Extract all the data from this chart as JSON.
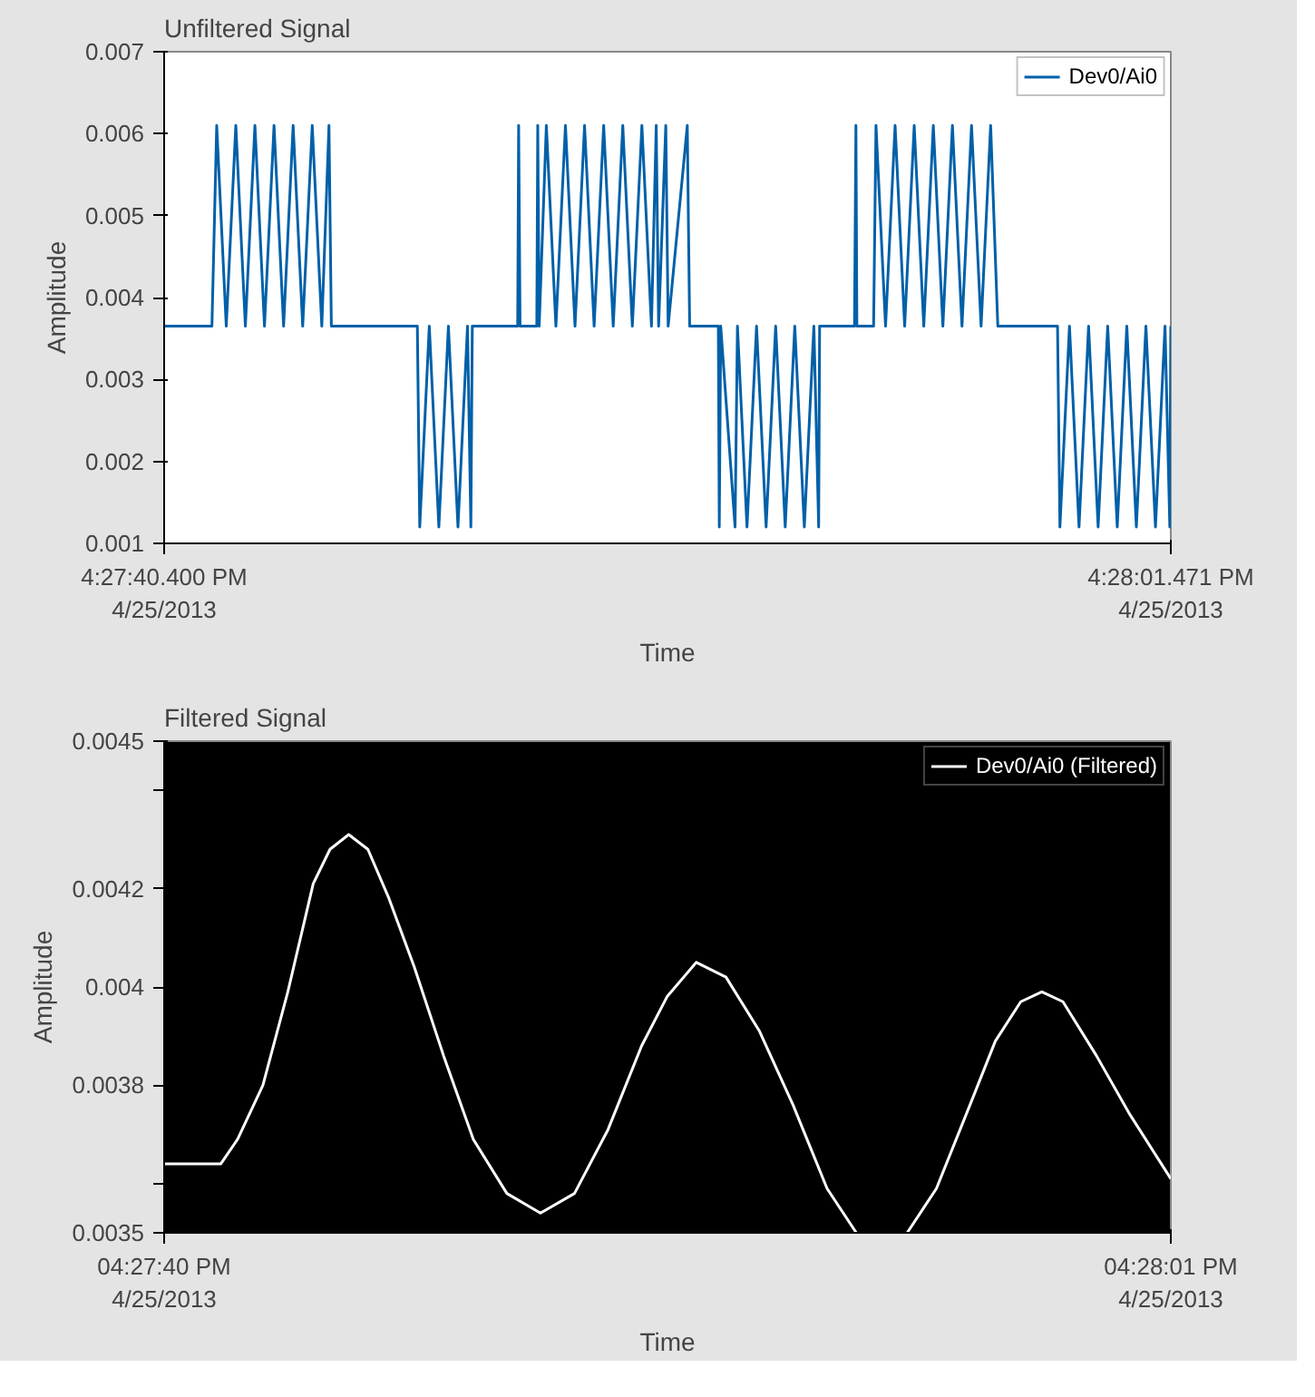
{
  "chart_data": [
    {
      "type": "line",
      "title": "Unfiltered Signal",
      "xlabel": "Time",
      "ylabel": "Amplitude",
      "legend": "top right",
      "grid": false,
      "xlim": [
        "2013-04-25T16:27:40.400",
        "2013-04-25T16:28:01.471"
      ],
      "xticks": [
        {
          "value": "2013-04-25T16:27:40.400",
          "label": "4:27:40.400 PM\n4/25/2013"
        },
        {
          "value": "2013-04-25T16:28:01.471",
          "label": "4:28:01.471 PM\n4/25/2013"
        }
      ],
      "ylim": [
        0.001,
        0.007
      ],
      "yticks": [
        0.001,
        0.002,
        0.003,
        0.004,
        0.005,
        0.006,
        0.007
      ],
      "series": [
        {
          "name": "Dev0/Ai0",
          "color": "#0060a8",
          "x": [
            "2013-04-25T16:27:40.400",
            "2013-04-25T16:27:41.400",
            "2013-04-25T16:27:41.500",
            "2013-04-25T16:27:41.700",
            "2013-04-25T16:27:41.900",
            "2013-04-25T16:27:42.100",
            "2013-04-25T16:27:42.300",
            "2013-04-25T16:27:42.500",
            "2013-04-25T16:27:42.700",
            "2013-04-25T16:27:42.900",
            "2013-04-25T16:27:43.100",
            "2013-04-25T16:27:43.300",
            "2013-04-25T16:27:43.500",
            "2013-04-25T16:27:43.700",
            "2013-04-25T16:27:43.850",
            "2013-04-25T16:27:43.900",
            "2013-04-25T16:27:45.700",
            "2013-04-25T16:27:45.750",
            "2013-04-25T16:27:45.950",
            "2013-04-25T16:27:46.150",
            "2013-04-25T16:27:46.350",
            "2013-04-25T16:27:46.550",
            "2013-04-25T16:27:46.750",
            "2013-04-25T16:27:46.820",
            "2013-04-25T16:27:46.850",
            "2013-04-25T16:27:47.800",
            "2013-04-25T16:27:47.820",
            "2013-04-25T16:27:47.850",
            "2013-04-25T16:27:48.200",
            "2013-04-25T16:27:48.220",
            "2013-04-25T16:27:48.250",
            "2013-04-25T16:27:48.400",
            "2013-04-25T16:27:48.600",
            "2013-04-25T16:27:48.800",
            "2013-04-25T16:27:49.000",
            "2013-04-25T16:27:49.200",
            "2013-04-25T16:27:49.400",
            "2013-04-25T16:27:49.600",
            "2013-04-25T16:27:49.800",
            "2013-04-25T16:27:50.000",
            "2013-04-25T16:27:50.200",
            "2013-04-25T16:27:50.400",
            "2013-04-25T16:27:50.600",
            "2013-04-25T16:27:50.700",
            "2013-04-25T16:27:50.750",
            "2013-04-25T16:27:50.900",
            "2013-04-25T16:27:50.950",
            "2013-04-25T16:27:51.350",
            "2013-04-25T16:27:51.400",
            "2013-04-25T16:27:52.000",
            "2013-04-25T16:27:52.020",
            "2013-04-25T16:27:52.050",
            "2013-04-25T16:27:52.350",
            "2013-04-25T16:27:52.400",
            "2013-04-25T16:27:52.600",
            "2013-04-25T16:27:52.800",
            "2013-04-25T16:27:53.000",
            "2013-04-25T16:27:53.200",
            "2013-04-25T16:27:53.400",
            "2013-04-25T16:27:53.600",
            "2013-04-25T16:27:53.800",
            "2013-04-25T16:27:54.000",
            "2013-04-25T16:27:54.100",
            "2013-04-25T16:27:54.120",
            "2013-04-25T16:27:54.850",
            "2013-04-25T16:27:54.880",
            "2013-04-25T16:27:54.900",
            "2013-04-25T16:27:55.250",
            "2013-04-25T16:27:55.300",
            "2013-04-25T16:27:55.500",
            "2013-04-25T16:27:55.700",
            "2013-04-25T16:27:55.900",
            "2013-04-25T16:27:56.100",
            "2013-04-25T16:27:56.300",
            "2013-04-25T16:27:56.500",
            "2013-04-25T16:27:56.700",
            "2013-04-25T16:27:56.900",
            "2013-04-25T16:27:57.100",
            "2013-04-25T16:27:57.300",
            "2013-04-25T16:27:57.500",
            "2013-04-25T16:27:57.700",
            "2013-04-25T16:27:57.850",
            "2013-04-25T16:27:59.100",
            "2013-04-25T16:27:59.150",
            "2013-04-25T16:27:59.350",
            "2013-04-25T16:27:59.550",
            "2013-04-25T16:27:59.750",
            "2013-04-25T16:27:59.950",
            "2013-04-25T16:28:00.150",
            "2013-04-25T16:28:00.350",
            "2013-04-25T16:28:00.550",
            "2013-04-25T16:28:00.750",
            "2013-04-25T16:28:00.950",
            "2013-04-25T16:28:01.150",
            "2013-04-25T16:28:01.350",
            "2013-04-25T16:28:01.450",
            "2013-04-25T16:28:01.471"
          ],
          "values": [
            0.00365,
            0.00365,
            0.0061,
            0.00365,
            0.0061,
            0.00365,
            0.0061,
            0.00365,
            0.0061,
            0.00365,
            0.0061,
            0.00365,
            0.0061,
            0.00365,
            0.0061,
            0.00365,
            0.00365,
            0.0012,
            0.00365,
            0.0012,
            0.00365,
            0.0012,
            0.00365,
            0.0012,
            0.00365,
            0.00365,
            0.0061,
            0.00365,
            0.00365,
            0.0061,
            0.00365,
            0.0061,
            0.00365,
            0.0061,
            0.00365,
            0.0061,
            0.00365,
            0.0061,
            0.00365,
            0.0061,
            0.00365,
            0.0061,
            0.00365,
            0.0061,
            0.00365,
            0.0061,
            0.00365,
            0.0061,
            0.00365,
            0.00365,
            0.0012,
            0.00365,
            0.0012,
            0.00365,
            0.0012,
            0.00365,
            0.0012,
            0.00365,
            0.0012,
            0.00365,
            0.0012,
            0.00365,
            0.0012,
            0.00365,
            0.00365,
            0.0061,
            0.00365,
            0.00365,
            0.0061,
            0.00365,
            0.0061,
            0.00365,
            0.0061,
            0.00365,
            0.0061,
            0.00365,
            0.0061,
            0.00365,
            0.0061,
            0.00365,
            0.0061,
            0.00365,
            0.00365,
            0.0012,
            0.00365,
            0.0012,
            0.00365,
            0.0012,
            0.00365,
            0.0012,
            0.00365,
            0.0012,
            0.00365,
            0.0012,
            0.00365,
            0.0012,
            0.00365
          ]
        }
      ]
    },
    {
      "type": "line",
      "title": "Filtered Signal",
      "xlabel": "Time",
      "ylabel": "Amplitude",
      "legend": "top right",
      "grid": false,
      "xlim": [
        "2013-04-25T16:27:40",
        "2013-04-25T16:28:01"
      ],
      "xticks": [
        {
          "value": "2013-04-25T16:27:40",
          "label": "04:27:40 PM\n4/25/2013"
        },
        {
          "value": "2013-04-25T16:28:01",
          "label": "04:28:01 PM\n4/25/2013"
        }
      ],
      "ylim": [
        0.0035,
        0.0045
      ],
      "yticks": [
        0.0035,
        {
          "value": 0.0036,
          "label": null
        },
        0.0038,
        0.004,
        0.0042,
        {
          "value": 0.0044,
          "label": null
        },
        0.0045
      ],
      "series": [
        {
          "name": "Dev0/Ai0 (Filtered)",
          "color": "#ffffff",
          "x": [
            "2013-04-25T16:27:40.000",
            "2013-04-25T16:27:41.180",
            "2013-04-25T16:27:41.530",
            "2013-04-25T16:27:42.060",
            "2013-04-25T16:27:42.580",
            "2013-04-25T16:27:43.110",
            "2013-04-25T16:27:43.460",
            "2013-04-25T16:27:43.850",
            "2013-04-25T16:27:44.250",
            "2013-04-25T16:27:44.690",
            "2013-04-25T16:27:45.220",
            "2013-04-25T16:27:45.830",
            "2013-04-25T16:27:46.450",
            "2013-04-25T16:27:47.150",
            "2013-04-25T16:27:47.850",
            "2013-04-25T16:27:48.560",
            "2013-04-25T16:27:49.260",
            "2013-04-25T16:27:49.960",
            "2013-04-25T16:27:50.490",
            "2013-04-25T16:27:51.100",
            "2013-04-25T16:27:51.720",
            "2013-04-25T16:27:52.420",
            "2013-04-25T16:27:53.120",
            "2013-04-25T16:27:53.830",
            "2013-04-25T16:27:54.440",
            "2013-04-25T16:27:55.000",
            "2013-04-25T16:27:55.500",
            "2013-04-25T16:27:56.110",
            "2013-04-25T16:27:56.810",
            "2013-04-25T16:27:57.340",
            "2013-04-25T16:27:57.870",
            "2013-04-25T16:27:58.310",
            "2013-04-25T16:27:58.750",
            "2013-04-25T16:27:59.450",
            "2013-04-25T16:28:00.150",
            "2013-04-25T16:28:01.000"
          ],
          "values": [
            0.00364,
            0.00364,
            0.00369,
            0.0038,
            0.00399,
            0.00421,
            0.00428,
            0.00431,
            0.00428,
            0.00418,
            0.00404,
            0.00386,
            0.00369,
            0.00358,
            0.00354,
            0.00358,
            0.00371,
            0.00388,
            0.00398,
            0.00405,
            0.00402,
            0.00391,
            0.00376,
            0.00359,
            0.0035,
            null,
            0.0035,
            0.00359,
            0.00376,
            0.00389,
            0.00397,
            0.00399,
            0.00397,
            0.00386,
            0.00374,
            0.00361
          ]
        }
      ]
    }
  ]
}
